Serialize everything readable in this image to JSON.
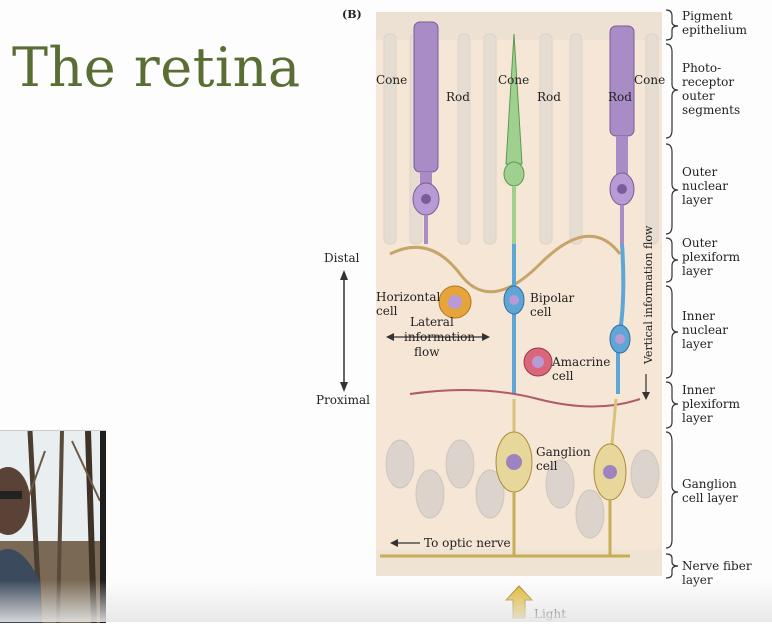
{
  "slide": {
    "title": "The retina"
  },
  "figure": {
    "panel_label": "(B)",
    "cell_labels": {
      "cone_left": "Cone",
      "rod_left": "Rod",
      "cone_center": "Cone",
      "rod_center": "Rod",
      "rod_right": "Rod",
      "cone_right": "Cone",
      "horizontal": [
        "Horizontal",
        "cell"
      ],
      "bipolar": [
        "Bipolar",
        "cell"
      ],
      "amacrine": [
        "Amacrine",
        "cell"
      ],
      "ganglion": [
        "Ganglion",
        "cell"
      ]
    },
    "flow_labels": {
      "lateral": [
        "Lateral",
        "information",
        "flow"
      ],
      "vertical": "Vertical information flow",
      "optic_nerve": "To optic nerve",
      "light": "Light"
    },
    "axis": {
      "distal": "Distal",
      "proximal": "Proximal"
    },
    "layers": [
      [
        "Pigment",
        "epithelium"
      ],
      [
        "Photo-",
        "receptor",
        "outer",
        "segments"
      ],
      [
        "Outer",
        "nuclear",
        "layer"
      ],
      [
        "Outer",
        "plexiform",
        "layer"
      ],
      [
        "Inner",
        "nuclear",
        "layer"
      ],
      [
        "Inner",
        "plexiform",
        "layer"
      ],
      [
        "Ganglion",
        "cell layer"
      ],
      [
        "Nerve fiber",
        "layer"
      ]
    ],
    "colors": {
      "cone": "#a98bc6",
      "cone_center": "#9fd08f",
      "bipolar": "#5fa6d6",
      "horizontal": "#e7a43a",
      "amacrine": "#d9667c",
      "ganglion": "#d8c27a",
      "background": "#f5e6d6"
    }
  }
}
